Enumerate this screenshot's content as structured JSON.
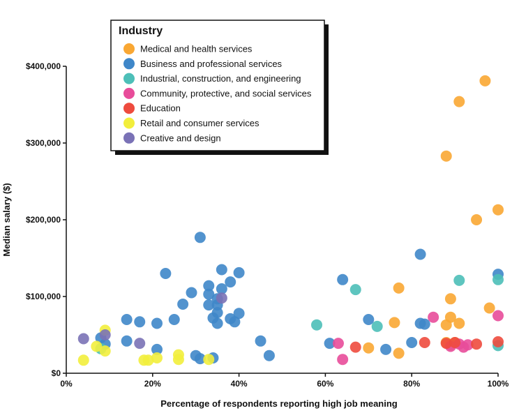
{
  "chart_data": {
    "type": "scatter",
    "xlabel": "Percentage of respondents reporting high job meaning",
    "ylabel": "Median salary ($)",
    "xlim": [
      0,
      100
    ],
    "ylim": [
      0,
      400000
    ],
    "x_ticks": [
      {
        "value": 0,
        "label": "0%"
      },
      {
        "value": 20,
        "label": "20%"
      },
      {
        "value": 40,
        "label": "40%"
      },
      {
        "value": 60,
        "label": "60%"
      },
      {
        "value": 80,
        "label": "80%"
      },
      {
        "value": 100,
        "label": "100%"
      }
    ],
    "y_ticks": [
      {
        "value": 0,
        "label": "$0"
      },
      {
        "value": 100000,
        "label": "$100,000"
      },
      {
        "value": 200000,
        "label": "$200,000"
      },
      {
        "value": 300000,
        "label": "$300,000"
      },
      {
        "value": 400000,
        "label": "$400,000"
      }
    ],
    "grid": false,
    "legend": {
      "title": "Industry",
      "placement": "top-left"
    },
    "series": [
      {
        "name": "Medical and health services",
        "color": "#F9A733",
        "points": [
          [
            97,
            381000
          ],
          [
            91,
            354000
          ],
          [
            88,
            283000
          ],
          [
            100,
            213000
          ],
          [
            95,
            200000
          ],
          [
            77,
            111000
          ],
          [
            89,
            97000
          ],
          [
            98,
            85000
          ],
          [
            76,
            66000
          ],
          [
            89,
            73000
          ],
          [
            91,
            65000
          ],
          [
            88,
            63000
          ],
          [
            88,
            40000
          ],
          [
            90,
            40000
          ],
          [
            89,
            37000
          ],
          [
            70,
            33000
          ],
          [
            77,
            26000
          ]
        ]
      },
      {
        "name": "Business and professional services",
        "color": "#3F87C9",
        "points": [
          [
            31,
            177000
          ],
          [
            23,
            130000
          ],
          [
            36,
            135000
          ],
          [
            38,
            119000
          ],
          [
            40,
            131000
          ],
          [
            33,
            114000
          ],
          [
            36,
            110000
          ],
          [
            29,
            105000
          ],
          [
            33,
            103000
          ],
          [
            35,
            97000
          ],
          [
            27,
            90000
          ],
          [
            33,
            89000
          ],
          [
            35,
            89000
          ],
          [
            35,
            79000
          ],
          [
            40,
            78000
          ],
          [
            34,
            72000
          ],
          [
            38,
            71000
          ],
          [
            39,
            67000
          ],
          [
            35,
            65000
          ],
          [
            25,
            70000
          ],
          [
            21,
            65000
          ],
          [
            14,
            70000
          ],
          [
            17,
            67000
          ],
          [
            14,
            42000
          ],
          [
            45,
            42000
          ],
          [
            8,
            46000
          ],
          [
            9,
            38000
          ],
          [
            21,
            31000
          ],
          [
            30,
            23000
          ],
          [
            31,
            19000
          ],
          [
            34,
            20000
          ],
          [
            47,
            23000
          ],
          [
            64,
            122000
          ],
          [
            82,
            155000
          ],
          [
            100,
            129000
          ],
          [
            70,
            70000
          ],
          [
            61,
            39000
          ],
          [
            74,
            31000
          ],
          [
            80,
            40000
          ],
          [
            82,
            65000
          ],
          [
            83,
            64000
          ]
        ]
      },
      {
        "name": "Industrial, construction, and engineering",
        "color": "#4DBFB8",
        "points": [
          [
            67,
            109000
          ],
          [
            58,
            63000
          ],
          [
            72,
            61000
          ],
          [
            91,
            121000
          ],
          [
            100,
            122000
          ],
          [
            100,
            36000
          ],
          [
            8,
            32000
          ]
        ]
      },
      {
        "name": "Community, protective, and social services",
        "color": "#E84C9A",
        "points": [
          [
            63,
            39000
          ],
          [
            64,
            18000
          ],
          [
            85,
            73000
          ],
          [
            100,
            75000
          ],
          [
            89,
            35000
          ],
          [
            92,
            34000
          ],
          [
            91,
            38000
          ],
          [
            93,
            37000
          ]
        ]
      },
      {
        "name": "Education",
        "color": "#EE4B3E",
        "points": [
          [
            67,
            34000
          ],
          [
            83,
            40000
          ],
          [
            88,
            39000
          ],
          [
            90,
            40000
          ],
          [
            95,
            38000
          ],
          [
            100,
            41000
          ]
        ]
      },
      {
        "name": "Retail and consumer services",
        "color": "#F2EE3C",
        "points": [
          [
            4,
            17000
          ],
          [
            7,
            35000
          ],
          [
            9,
            29000
          ],
          [
            9,
            56000
          ],
          [
            18,
            17000
          ],
          [
            19,
            17000
          ],
          [
            21,
            20000
          ],
          [
            26,
            24000
          ],
          [
            26,
            18000
          ],
          [
            33,
            18000
          ]
        ]
      },
      {
        "name": "Creative and design",
        "color": "#7A72B6",
        "points": [
          [
            4,
            45000
          ],
          [
            9,
            50000
          ],
          [
            17,
            39000
          ],
          [
            36,
            98000
          ]
        ]
      }
    ]
  }
}
